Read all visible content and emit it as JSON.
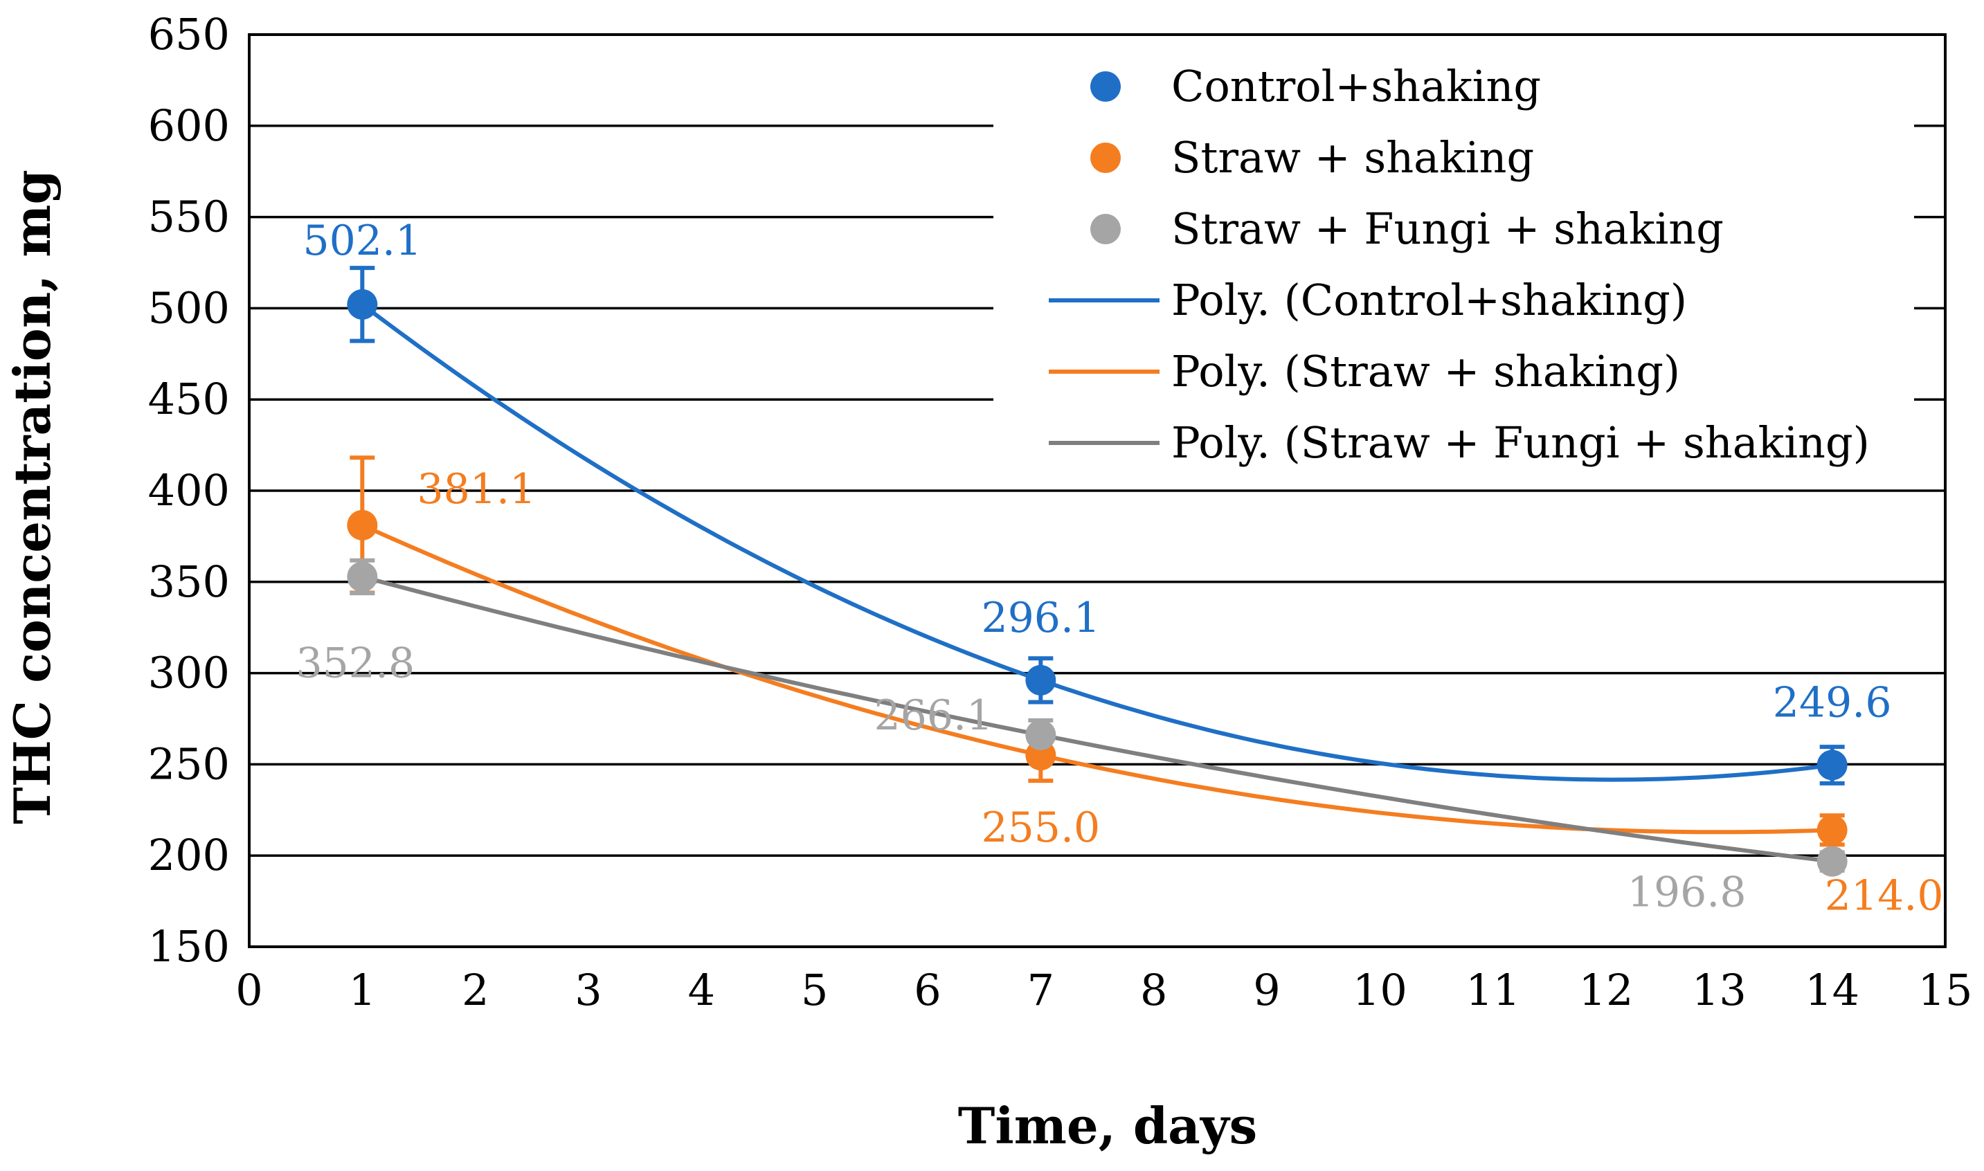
{
  "chart_data": {
    "type": "scatter",
    "title": "",
    "xlabel": "Time, days",
    "ylabel": "THC concentration, mg",
    "xlim": [
      0,
      15
    ],
    "ylim": [
      150,
      650
    ],
    "xticks": [
      0,
      1,
      2,
      3,
      4,
      5,
      6,
      7,
      8,
      9,
      10,
      11,
      12,
      13,
      14,
      15
    ],
    "yticks": [
      150,
      200,
      250,
      300,
      350,
      400,
      450,
      500,
      550,
      600,
      650
    ],
    "grid": "horizontal",
    "legend_position": "top-right",
    "series": [
      {
        "name": "Control+shaking",
        "trend_name": "Poly. (Control+shaking)",
        "color": "#1f6fc6",
        "trend_color": "#1f6fc6",
        "x": [
          1,
          7,
          14
        ],
        "values": [
          502.1,
          296.1,
          249.6
        ],
        "labels": [
          "502.1",
          "296.1",
          "249.6"
        ],
        "error": [
          20,
          12,
          10
        ]
      },
      {
        "name": "Straw + shaking",
        "trend_name": "Poly. (Straw + shaking)",
        "color": "#f47d20",
        "trend_color": "#f47d20",
        "x": [
          1,
          7,
          14
        ],
        "values": [
          381.1,
          255.0,
          214.0
        ],
        "labels": [
          "381.1",
          "255.0",
          "214.0"
        ],
        "error": [
          37,
          14,
          8
        ]
      },
      {
        "name": "Straw + Fungi + shaking",
        "trend_name": "Poly. (Straw + Fungi + shaking)",
        "color": "#a5a5a5",
        "trend_color": "#7f7f7f",
        "x": [
          1,
          7,
          14
        ],
        "values": [
          352.8,
          266.1,
          196.8
        ],
        "labels": [
          "352.8",
          "266.1",
          "196.8"
        ],
        "error": [
          9,
          8,
          5
        ]
      }
    ]
  }
}
